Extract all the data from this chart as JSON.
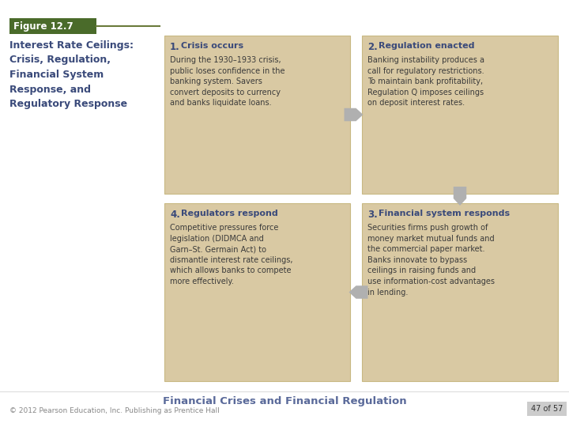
{
  "figure_label": "Figure 12.7",
  "figure_label_bg": "#4a6b2a",
  "figure_label_color": "#ffffff",
  "title_text": "Interest Rate Ceilings:\nCrisis, Regulation,\nFinancial System\nResponse, and\nRegulatory Response",
  "title_color": "#3a4a7a",
  "bg_color": "#ffffff",
  "box_bg": "#d9c9a3",
  "box_border": "#c8b882",
  "footer_title": "Financial Crises and Financial Regulation",
  "footer_sub": "© 2012 Pearson Education, Inc. Publishing as Prentice Hall",
  "page_num": "47 of 57",
  "boxes": [
    {
      "num": "1",
      "title": " Crisis occurs",
      "body": "During the 1930–1933 crisis,\npublic loses confidence in the\nbanking system. Savers\nconvert deposits to currency\nand banks liquidate loans.",
      "col": 0,
      "row": 0
    },
    {
      "num": "2",
      "title": " Regulation enacted",
      "body": "Banking instability produces a\ncall for regulatory restrictions.\nTo maintain bank profitability,\nRegulation Q imposes ceilings\non deposit interest rates.",
      "col": 1,
      "row": 0
    },
    {
      "num": "3",
      "title": " Financial system responds",
      "body": "Securities firms push growth of\nmoney market mutual funds and\nthe commercial paper market.\nBanks innovate to bypass\nceilings in raising funds and\nuse information-cost advantages\nin lending.",
      "col": 1,
      "row": 1
    },
    {
      "num": "4",
      "title": " Regulators respond",
      "body": "Competitive pressures force\nlegislation (DIDMCA and\nGarn–St. Germain Act) to\ndismantle interest rate ceilings,\nwhich allows banks to compete\nmore effectively.",
      "col": 0,
      "row": 1
    }
  ],
  "arrow_color": "#b0b0b0",
  "num_color": "#3a4a7a",
  "title_box_color": "#3a4a7a",
  "body_color": "#3a3a3a",
  "line_color": "#6a7a3a"
}
